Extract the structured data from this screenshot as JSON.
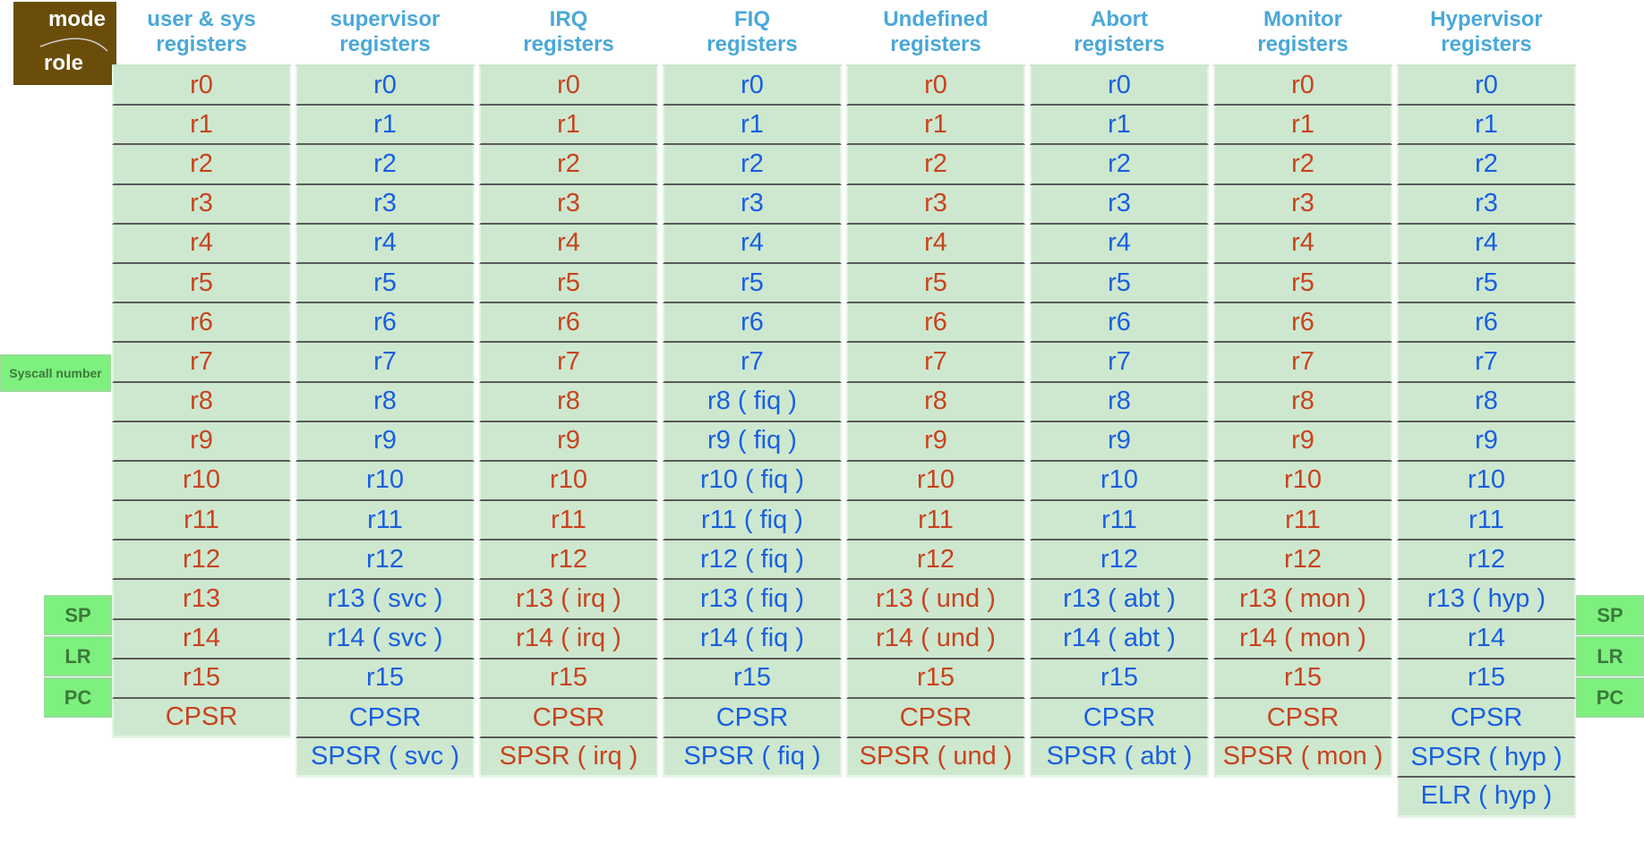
{
  "corner": {
    "top": "mode",
    "bottom": "role"
  },
  "side_labels": {
    "syscall": "Syscall number",
    "sp": "SP",
    "lr": "LR",
    "pc": "PC"
  },
  "columns": [
    {
      "h1": "user & sys",
      "h2": "registers",
      "color": "red",
      "cells": [
        "r0",
        "r1",
        "r2",
        "r3",
        "r4",
        "r5",
        "r6",
        "r7",
        "r8",
        "r9",
        "r10",
        "r11",
        "r12",
        "r13",
        "r14",
        "r15",
        "CPSR"
      ]
    },
    {
      "h1": "supervisor",
      "h2": "registers",
      "color": "blue",
      "cells": [
        "r0",
        "r1",
        "r2",
        "r3",
        "r4",
        "r5",
        "r6",
        "r7",
        "r8",
        "r9",
        "r10",
        "r11",
        "r12",
        "r13 ( svc )",
        "r14 ( svc )",
        "r15",
        "CPSR",
        "SPSR ( svc )"
      ]
    },
    {
      "h1": "IRQ",
      "h2": "registers",
      "color": "red",
      "cells": [
        "r0",
        "r1",
        "r2",
        "r3",
        "r4",
        "r5",
        "r6",
        "r7",
        "r8",
        "r9",
        "r10",
        "r11",
        "r12",
        "r13 ( irq )",
        "r14 ( irq )",
        "r15",
        "CPSR",
        "SPSR ( irq )"
      ]
    },
    {
      "h1": "FIQ",
      "h2": "registers",
      "color": "blue",
      "cells": [
        "r0",
        "r1",
        "r2",
        "r3",
        "r4",
        "r5",
        "r6",
        "r7",
        "r8 ( fiq )",
        "r9 ( fiq )",
        "r10 ( fiq )",
        "r11 ( fiq )",
        "r12 ( fiq )",
        "r13 ( fiq )",
        "r14 ( fiq )",
        "r15",
        "CPSR",
        "SPSR ( fiq )"
      ]
    },
    {
      "h1": "Undefined",
      "h2": "registers",
      "color": "red",
      "cells": [
        "r0",
        "r1",
        "r2",
        "r3",
        "r4",
        "r5",
        "r6",
        "r7",
        "r8",
        "r9",
        "r10",
        "r11",
        "r12",
        "r13 ( und )",
        "r14 ( und )",
        "r15",
        "CPSR",
        "SPSR ( und )"
      ]
    },
    {
      "h1": "Abort",
      "h2": "registers",
      "color": "blue",
      "cells": [
        "r0",
        "r1",
        "r2",
        "r3",
        "r4",
        "r5",
        "r6",
        "r7",
        "r8",
        "r9",
        "r10",
        "r11",
        "r12",
        "r13 ( abt )",
        "r14 ( abt )",
        "r15",
        "CPSR",
        "SPSR ( abt )"
      ]
    },
    {
      "h1": "Monitor",
      "h2": "registers",
      "color": "red",
      "cells": [
        "r0",
        "r1",
        "r2",
        "r3",
        "r4",
        "r5",
        "r6",
        "r7",
        "r8",
        "r9",
        "r10",
        "r11",
        "r12",
        "r13 ( mon )",
        "r14 ( mon )",
        "r15",
        "CPSR",
        "SPSR ( mon )"
      ]
    },
    {
      "h1": "Hypervisor",
      "h2": "registers",
      "color": "blue",
      "cells": [
        "r0",
        "r1",
        "r2",
        "r3",
        "r4",
        "r5",
        "r6",
        "r7",
        "r8",
        "r9",
        "r10",
        "r11",
        "r12",
        "r13 ( hyp )",
        "r14",
        "r15",
        "CPSR",
        "SPSR ( hyp )",
        "ELR ( hyp )"
      ]
    }
  ]
}
